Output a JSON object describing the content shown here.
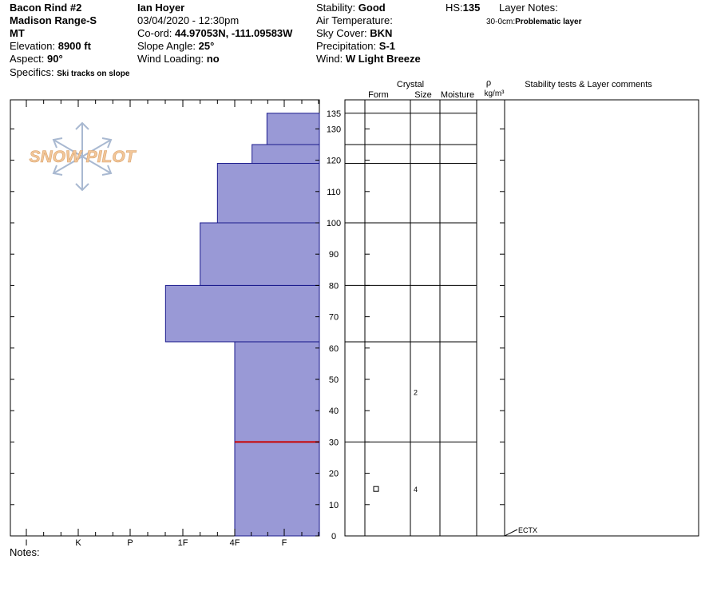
{
  "header": {
    "site": "Bacon Rind #2",
    "range": "Madison Range-S",
    "state": "MT",
    "elevation_label": "Elevation:",
    "elevation": "8900 ft",
    "aspect_label": "Aspect:",
    "aspect": "90°",
    "specifics_label": "Specifics:",
    "specifics": "Ski tracks on slope",
    "observer": "Ian Hoyer",
    "datetime": "03/04/2020 - 12:30pm",
    "coord_label": "Co-ord:",
    "coord": "44.97053N, -111.09583W",
    "slope_label": "Slope Angle:",
    "slope": "25°",
    "wind_loading_label": "Wind Loading:",
    "wind_loading": "no",
    "stability_label": "Stability:",
    "stability": "Good",
    "air_temp_label": "Air Temperature:",
    "sky_label": "Sky Cover:",
    "sky": "BKN",
    "precip_label": "Precipitation:",
    "precip": "S-1",
    "wind_label": "Wind:",
    "wind": "W Light Breeze",
    "hs_label": "HS:",
    "hs": "135",
    "layer_notes_label": "Layer Notes:",
    "layer_note_range": "30-0cm:",
    "layer_note_text": "Problematic layer"
  },
  "columns": {
    "crystal": "Crystal",
    "form": "Form",
    "size": "Size",
    "moisture": "Moisture",
    "rho": "ρ",
    "density_unit": "kg/m³",
    "comments": "Stability tests & Layer comments"
  },
  "logo_text": "SNOW PILOT",
  "notes_label": "Notes:",
  "colors": {
    "layer_fill": "#9999d6",
    "layer_edge": "#1a1a8c",
    "problem_layer": "#cc0000",
    "logo": "#f2c79a",
    "snowflake": "#a9b9d1"
  },
  "chart_data": {
    "type": "snow_profile",
    "hs_cm": 135,
    "depth_range": [
      0,
      135
    ],
    "depth_ticks": [
      0,
      10,
      20,
      30,
      40,
      50,
      60,
      70,
      80,
      90,
      100,
      110,
      120,
      130,
      135
    ],
    "hardness_scale": [
      "I",
      "K",
      "P",
      "1F",
      "4F",
      "F"
    ],
    "layers": [
      {
        "bottom": 0,
        "top": 30,
        "hardness": "4F"
      },
      {
        "bottom": 30,
        "top": 62,
        "hardness": "4F"
      },
      {
        "bottom": 62,
        "top": 80,
        "hardness": "1F+"
      },
      {
        "bottom": 80,
        "top": 100,
        "hardness": "1F-"
      },
      {
        "bottom": 100,
        "top": 119,
        "hardness": "4F+"
      },
      {
        "bottom": 119,
        "top": 125,
        "hardness": "4F-"
      },
      {
        "bottom": 125,
        "top": 135,
        "hardness": "F+"
      }
    ],
    "layer_boundaries": [
      30,
      62,
      80,
      100,
      119,
      125,
      135
    ],
    "problem_layer_height": 30,
    "crystals": [
      {
        "height": 46,
        "size": "2"
      },
      {
        "height": 15,
        "size": "4",
        "form": "square"
      }
    ],
    "stability_tests": [
      {
        "height": 0,
        "label": "ECTX"
      }
    ]
  }
}
